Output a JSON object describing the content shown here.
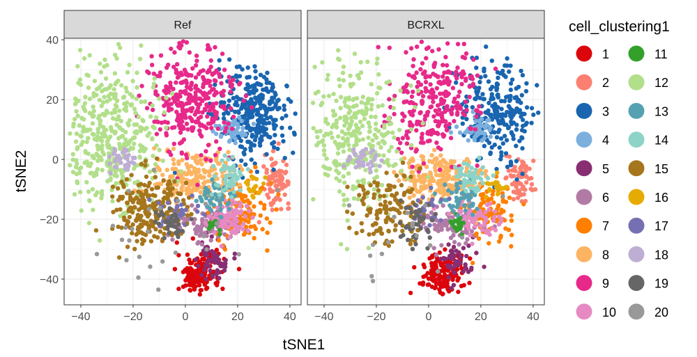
{
  "chart_data": {
    "type": "scatter",
    "xlabel": "tSNE1",
    "ylabel": "tSNE2",
    "xlim": [
      -46.4,
      44.3
    ],
    "ylim": [
      -48.6,
      40.5
    ],
    "xticks": [
      -40,
      -20,
      0,
      20,
      40
    ],
    "yticks": [
      -40,
      -20,
      0,
      20,
      40
    ],
    "grid": true,
    "facets": [
      "Ref",
      "BCRXL"
    ],
    "legend": {
      "title": "cell_clustering1",
      "placement": "right"
    },
    "clusters": [
      {
        "id": "1",
        "color": "#DC050C",
        "center": [
          5,
          -38
        ],
        "spread": [
          4,
          3.5
        ],
        "n": [
          160,
          150
        ]
      },
      {
        "id": "2",
        "color": "#FB8072",
        "center": [
          35,
          -7
        ],
        "spread": [
          2.5,
          4
        ],
        "n": [
          80,
          70
        ]
      },
      {
        "id": "3",
        "color": "#1965B0",
        "center": [
          26,
          15
        ],
        "spread": [
          7,
          8
        ],
        "n": [
          320,
          260
        ]
      },
      {
        "id": "4",
        "color": "#7BAFDE",
        "center": [
          18,
          10
        ],
        "spread": [
          3,
          2
        ],
        "n": [
          50,
          50
        ]
      },
      {
        "id": "5",
        "color": "#882E72",
        "center": [
          11,
          -33
        ],
        "spread": [
          3,
          3
        ],
        "n": [
          60,
          50
        ]
      },
      {
        "id": "6",
        "color": "#B17BA6",
        "center": [
          8,
          -22
        ],
        "spread": [
          6,
          3
        ],
        "n": [
          100,
          90
        ]
      },
      {
        "id": "7",
        "color": "#FF7F00",
        "center": [
          22,
          -17
        ],
        "spread": [
          6,
          5
        ],
        "n": [
          110,
          110
        ]
      },
      {
        "id": "8",
        "color": "#FDB462",
        "center": [
          4,
          -6
        ],
        "spread": [
          8,
          4
        ],
        "n": [
          220,
          220
        ]
      },
      {
        "id": "9",
        "color": "#E7298A",
        "center": [
          2,
          20
        ],
        "spread": [
          8,
          9
        ],
        "n": [
          330,
          280
        ]
      },
      {
        "id": "10",
        "color": "#E78AC3",
        "center": [
          18,
          -20
        ],
        "spread": [
          5,
          3
        ],
        "n": [
          80,
          80
        ]
      },
      {
        "id": "11",
        "color": "#33A02C",
        "center": [
          11,
          -22
        ],
        "spread": [
          1.5,
          1.5
        ],
        "n": [
          15,
          25
        ]
      },
      {
        "id": "12",
        "color": "#B2DF8A",
        "center": [
          -28,
          8
        ],
        "spread": [
          9,
          12
        ],
        "n": [
          420,
          330
        ]
      },
      {
        "id": "13",
        "color": "#55A1B1",
        "center": [
          12,
          -13
        ],
        "spread": [
          4,
          3
        ],
        "n": [
          50,
          50
        ]
      },
      {
        "id": "14",
        "color": "#8DD3C7",
        "center": [
          17,
          -6
        ],
        "spread": [
          3,
          3
        ],
        "n": [
          50,
          50
        ]
      },
      {
        "id": "15",
        "color": "#A6761D",
        "center": [
          -15,
          -17
        ],
        "spread": [
          7,
          6
        ],
        "n": [
          230,
          130
        ]
      },
      {
        "id": "16",
        "color": "#E6AB02",
        "center": [
          26,
          -9
        ],
        "spread": [
          2,
          2
        ],
        "n": [
          20,
          20
        ]
      },
      {
        "id": "17",
        "color": "#7570B3",
        "center": [
          -2,
          -17
        ],
        "spread": [
          4,
          3
        ],
        "n": [
          25,
          25
        ]
      },
      {
        "id": "18",
        "color": "#BEAED4",
        "center": [
          -25,
          0
        ],
        "spread": [
          3,
          2
        ],
        "n": [
          40,
          40
        ]
      },
      {
        "id": "19",
        "color": "#666666",
        "center": [
          -5,
          -22
        ],
        "spread": [
          3,
          3
        ],
        "n": [
          40,
          40
        ]
      },
      {
        "id": "20",
        "color": "#999999",
        "center": [
          -10,
          -25
        ],
        "spread": [
          15,
          12
        ],
        "n": [
          25,
          20
        ]
      }
    ]
  }
}
